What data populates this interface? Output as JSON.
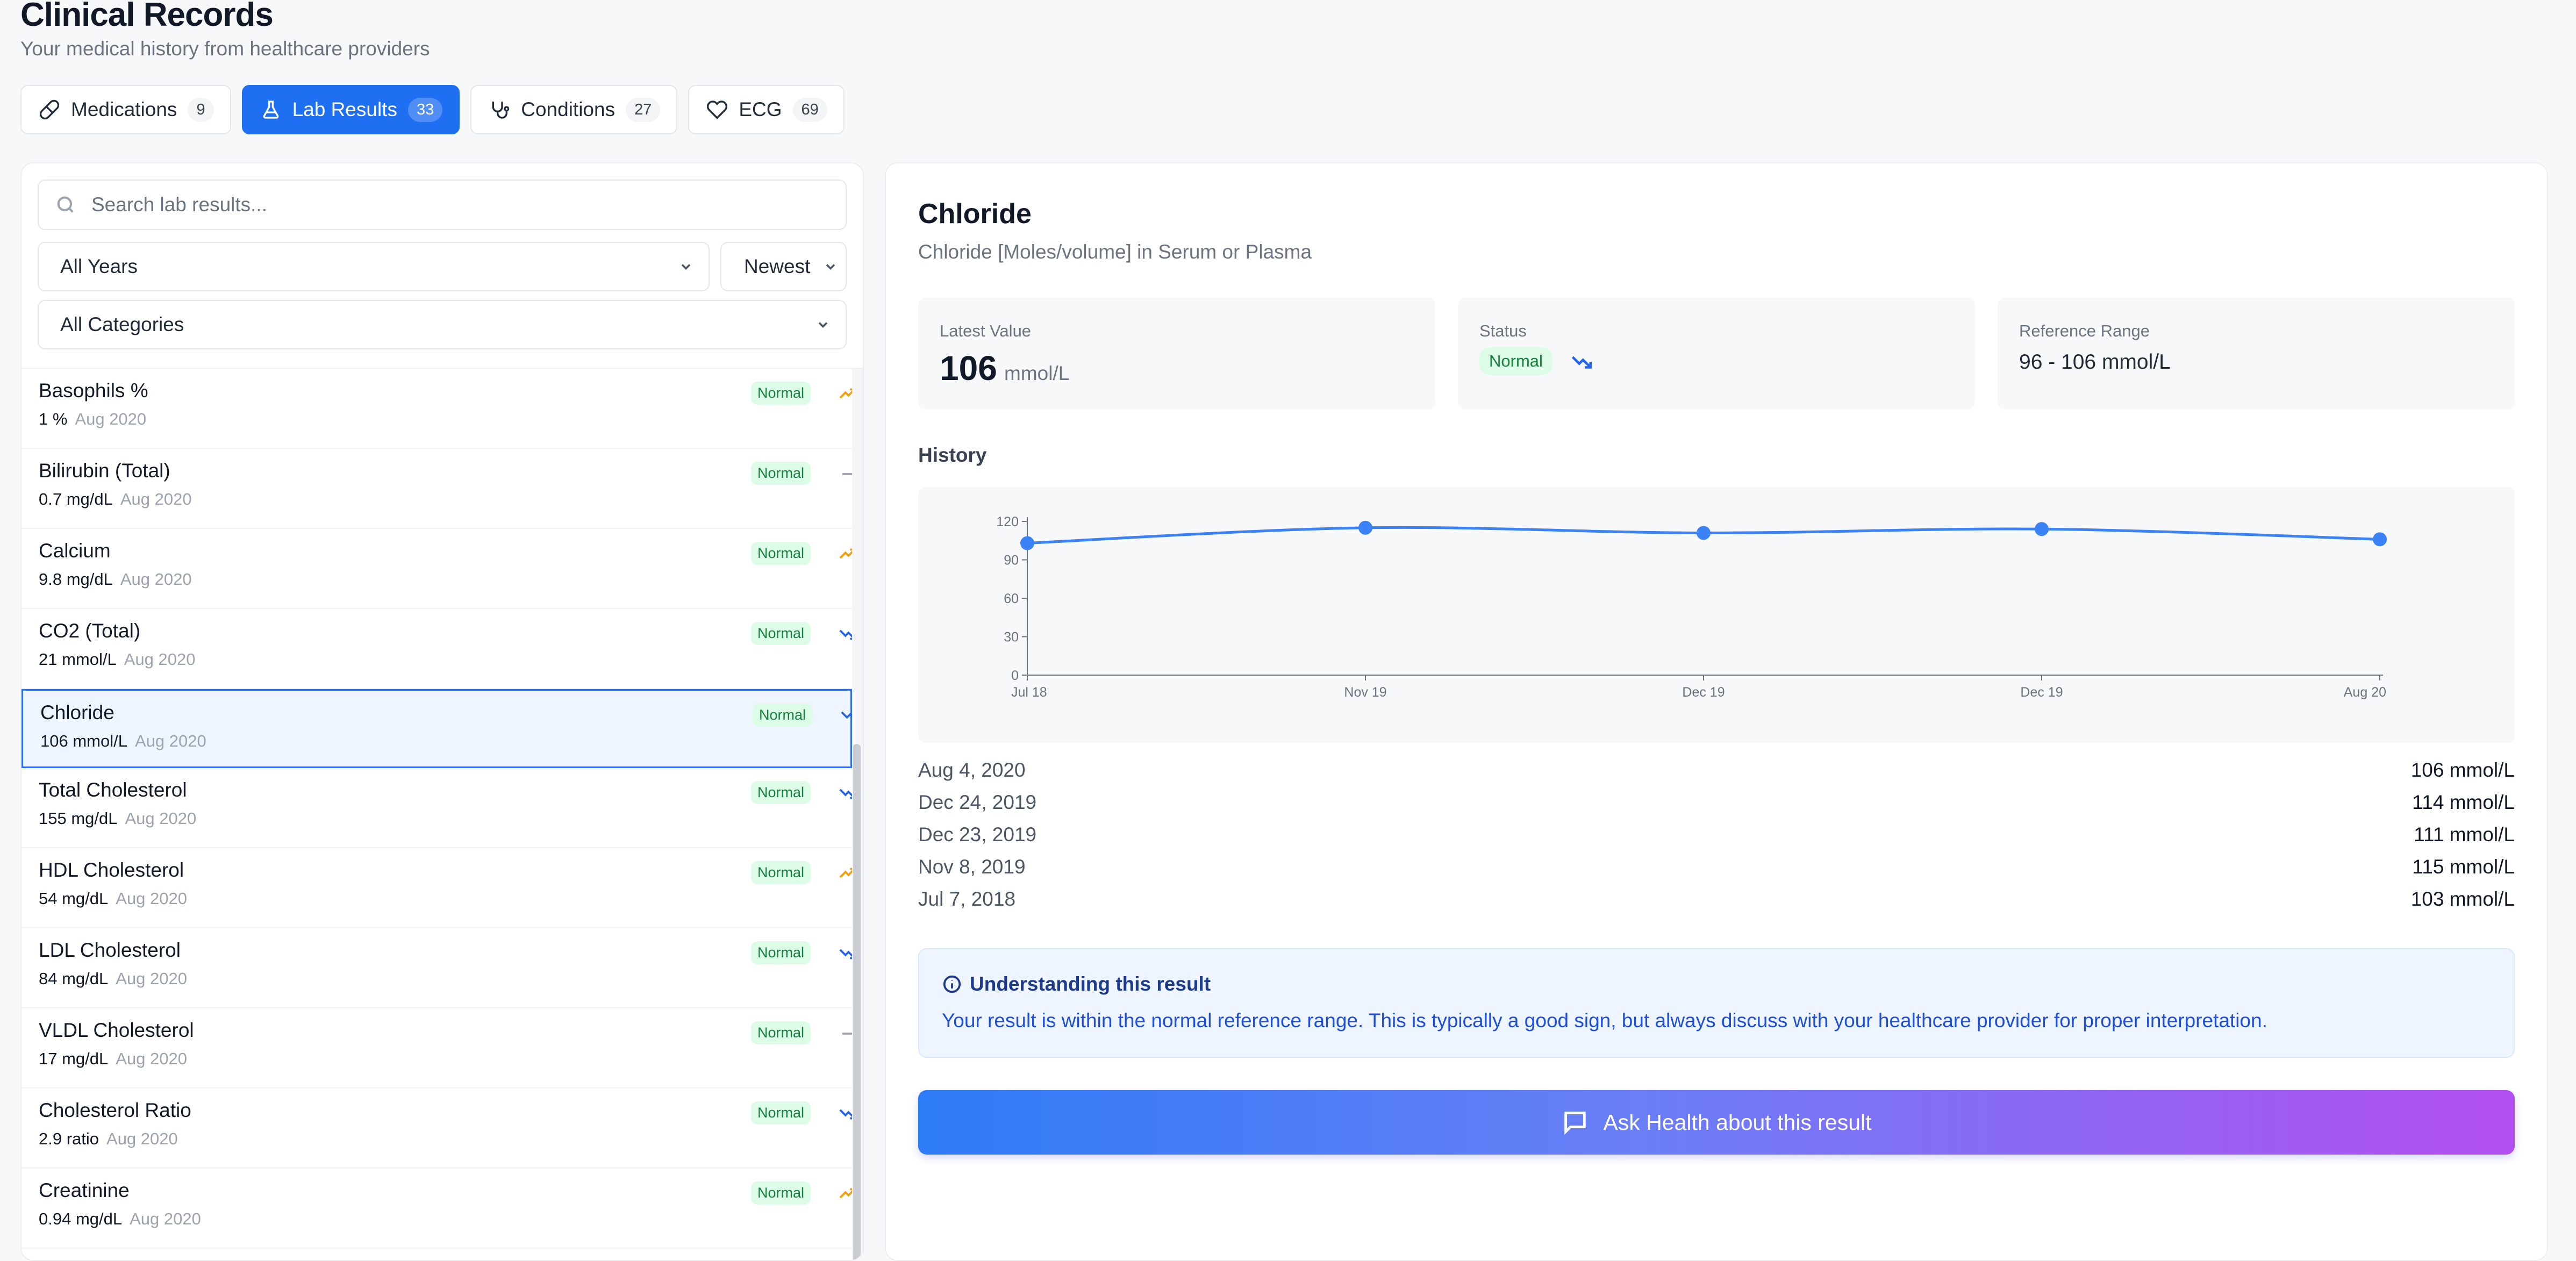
{
  "header": {
    "title": "Clinical Records",
    "subtitle": "Your medical history from healthcare providers"
  },
  "tabs": [
    {
      "label": "Medications",
      "count": "9",
      "icon": "pill-icon",
      "active": false
    },
    {
      "label": "Lab Results",
      "count": "33",
      "icon": "flask-icon",
      "active": true
    },
    {
      "label": "Conditions",
      "count": "27",
      "icon": "stethoscope-icon",
      "active": false
    },
    {
      "label": "ECG",
      "count": "69",
      "icon": "heart-icon",
      "active": false
    }
  ],
  "filters": {
    "search_placeholder": "Search lab results...",
    "years": "All Years",
    "sort": "Newest",
    "category": "All Categories"
  },
  "lab_list": [
    {
      "name": "Basophils %",
      "value": "1 %",
      "date": "Aug 2020",
      "status": "Normal",
      "trend": "up"
    },
    {
      "name": "Bilirubin (Total)",
      "value": "0.7 mg/dL",
      "date": "Aug 2020",
      "status": "Normal",
      "trend": "flat"
    },
    {
      "name": "Calcium",
      "value": "9.8 mg/dL",
      "date": "Aug 2020",
      "status": "Normal",
      "trend": "up"
    },
    {
      "name": "CO2 (Total)",
      "value": "21 mmol/L",
      "date": "Aug 2020",
      "status": "Normal",
      "trend": "down"
    },
    {
      "name": "Chloride",
      "value": "106 mmol/L",
      "date": "Aug 2020",
      "status": "Normal",
      "trend": "down",
      "selected": true
    },
    {
      "name": "Total Cholesterol",
      "value": "155 mg/dL",
      "date": "Aug 2020",
      "status": "Normal",
      "trend": "down"
    },
    {
      "name": "HDL Cholesterol",
      "value": "54 mg/dL",
      "date": "Aug 2020",
      "status": "Normal",
      "trend": "up"
    },
    {
      "name": "LDL Cholesterol",
      "value": "84 mg/dL",
      "date": "Aug 2020",
      "status": "Normal",
      "trend": "down"
    },
    {
      "name": "VLDL Cholesterol",
      "value": "17 mg/dL",
      "date": "Aug 2020",
      "status": "Normal",
      "trend": "flat"
    },
    {
      "name": "Cholesterol Ratio",
      "value": "2.9 ratio",
      "date": "Aug 2020",
      "status": "Normal",
      "trend": "down"
    },
    {
      "name": "Creatinine",
      "value": "0.94 mg/dL",
      "date": "Aug 2020",
      "status": "Normal",
      "trend": "up"
    }
  ],
  "trend_colors": {
    "up": "#f59e0b",
    "down": "#2563eb",
    "flat": "#9ca3af"
  },
  "detail": {
    "title": "Chloride",
    "subtitle": "Chloride [Moles/volume] in Serum or Plasma",
    "latest_label": "Latest Value",
    "latest_value": "106",
    "latest_unit": "mmol/L",
    "status_label": "Status",
    "status_value": "Normal",
    "range_label": "Reference Range",
    "range_value": "96 - 106 mmol/L",
    "history_label": "History",
    "history": [
      {
        "date": "Aug 4, 2020",
        "value": "106 mmol/L"
      },
      {
        "date": "Dec 24, 2019",
        "value": "114 mmol/L"
      },
      {
        "date": "Dec 23, 2019",
        "value": "111 mmol/L"
      },
      {
        "date": "Nov 8, 2019",
        "value": "115 mmol/L"
      },
      {
        "date": "Jul 7, 2018",
        "value": "103 mmol/L"
      }
    ],
    "info_title": "Understanding this result",
    "info_text": "Your result is within the normal reference range. This is typically a good sign, but always discuss with your healthcare provider for proper interpretation.",
    "ask_button": "Ask Health about this result"
  },
  "chart_data": {
    "type": "line",
    "categories": [
      "Jul 18",
      "Nov 19",
      "Dec 19",
      "Dec 19",
      "Aug 20"
    ],
    "series": [
      {
        "values": [
          103,
          115,
          111,
          114,
          106
        ]
      }
    ],
    "ylim": [
      0,
      120
    ],
    "yticks": [
      0,
      30,
      60,
      90,
      120
    ],
    "color": "#3b82f6",
    "grid": false
  }
}
